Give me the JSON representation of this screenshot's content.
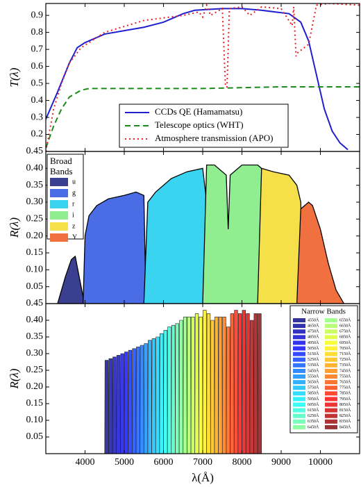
{
  "chart_data": [
    {
      "type": "line",
      "ylabel": "T(λ)",
      "xlim": [
        3000,
        11000
      ],
      "ylim": [
        0.1,
        0.97
      ],
      "yticks": [
        0.2,
        0.3,
        0.4,
        0.5,
        0.6,
        0.7,
        0.8,
        0.9
      ],
      "series": [
        {
          "name": "CCDs QE (Hamamatsu)",
          "color": "#1f1fd0",
          "linestyle": "solid",
          "x": [
            3000,
            3300,
            3600,
            3800,
            4000,
            4500,
            5000,
            5500,
            6000,
            6500,
            6800,
            7500,
            8000,
            8500,
            9200,
            9500,
            9700,
            9900,
            10100,
            10300,
            10500,
            10700
          ],
          "values": [
            0.29,
            0.45,
            0.62,
            0.71,
            0.74,
            0.79,
            0.81,
            0.83,
            0.86,
            0.91,
            0.93,
            0.94,
            0.94,
            0.93,
            0.91,
            0.86,
            0.75,
            0.55,
            0.35,
            0.22,
            0.15,
            0.11
          ]
        },
        {
          "name": "Telescope optics (WHT)",
          "color": "#1a8a1a",
          "linestyle": "dashed",
          "x": [
            3000,
            3200,
            3400,
            3600,
            3900,
            4100,
            5000,
            7000,
            9000,
            11000
          ],
          "values": [
            0.12,
            0.25,
            0.35,
            0.42,
            0.46,
            0.47,
            0.47,
            0.47,
            0.48,
            0.48
          ]
        },
        {
          "name": "Atmosphere transmission (APO)",
          "color": "#e82020",
          "linestyle": "dotted",
          "x": [
            3000,
            3200,
            3400,
            3600,
            3900,
            4500,
            5500,
            6500,
            6900,
            7000,
            7100,
            7200,
            7500,
            7580,
            7620,
            7680,
            8000,
            8200,
            8500,
            9000,
            9280,
            9320,
            9380,
            9420,
            9700,
            9900,
            10200,
            11000
          ],
          "values": [
            0.1,
            0.35,
            0.5,
            0.62,
            0.71,
            0.8,
            0.87,
            0.9,
            0.92,
            0.89,
            0.96,
            0.9,
            0.94,
            0.48,
            0.48,
            0.94,
            0.95,
            0.9,
            0.95,
            0.94,
            0.84,
            0.95,
            0.66,
            0.68,
            0.73,
            0.96,
            0.97,
            0.96
          ]
        }
      ]
    },
    {
      "type": "area",
      "ylabel": "R(λ)",
      "legend_title": "Broad Bands",
      "xlim": [
        3000,
        11000
      ],
      "ylim": [
        0,
        0.45
      ],
      "yticks": [
        0.05,
        {
          "value": 0.1,
          "label": "0.10"
        },
        0.15,
        {
          "value": 0.2,
          "label": "0.20"
        },
        0.25,
        {
          "value": 0.3,
          "label": "0.30"
        },
        0.35,
        {
          "value": 0.4,
          "label": "0.40"
        },
        0.45
      ],
      "series": [
        {
          "name": "u",
          "color": "#3a3f8f",
          "x": [
            3300,
            3500,
            3650,
            3750,
            3850,
            3950,
            4000
          ],
          "values": [
            0,
            0.08,
            0.13,
            0.14,
            0.08,
            0.02,
            0
          ]
        },
        {
          "name": "g",
          "color": "#4a6de5",
          "x": [
            3950,
            4000,
            4100,
            4300,
            4600,
            5000,
            5300,
            5500,
            5550,
            5600
          ],
          "values": [
            0,
            0.2,
            0.26,
            0.29,
            0.31,
            0.32,
            0.33,
            0.32,
            0.02,
            0
          ]
        },
        {
          "name": "r",
          "color": "#3ad4f0",
          "x": [
            5500,
            5600,
            5800,
            6200,
            6600,
            7000,
            7100,
            7150
          ],
          "values": [
            0,
            0.3,
            0.33,
            0.37,
            0.39,
            0.4,
            0.3,
            0
          ]
        },
        {
          "name": "i",
          "color": "#90ee90",
          "x": [
            7000,
            7100,
            7300,
            7600,
            7650,
            7700,
            8000,
            8400,
            8500,
            8550
          ],
          "values": [
            0,
            0.41,
            0.41,
            0.38,
            0.22,
            0.38,
            0.41,
            0.41,
            0.4,
            0
          ]
        },
        {
          "name": "z",
          "color": "#f5e04a",
          "x": [
            8400,
            8500,
            8800,
            9200,
            9400,
            9500,
            9550
          ],
          "values": [
            0,
            0.4,
            0.39,
            0.38,
            0.35,
            0.3,
            0
          ]
        },
        {
          "name": "Y",
          "color": "#f07040",
          "x": [
            9400,
            9500,
            9700,
            9800,
            10000,
            10200,
            10400,
            10600
          ],
          "values": [
            0,
            0.28,
            0.3,
            0.29,
            0.22,
            0.12,
            0.04,
            0
          ]
        }
      ]
    },
    {
      "type": "narrowband",
      "ylabel": "R(λ)",
      "xlabel": "λ(Å)",
      "legend_title": "Narrow Bands",
      "xlim": [
        3000,
        11000
      ],
      "ylim": [
        0,
        0.45
      ],
      "xticks": [
        4000,
        5000,
        6000,
        7000,
        8000,
        9000,
        10000
      ],
      "yticks": [
        0.05,
        {
          "value": 0.1,
          "label": "0.10"
        },
        0.15,
        {
          "value": 0.2,
          "label": "0.20"
        },
        0.25,
        {
          "value": 0.3,
          "label": "0.30"
        },
        0.35,
        {
          "value": 0.4,
          "label": "0.40"
        },
        0.45
      ],
      "x": [
        4550,
        4650,
        4750,
        4850,
        4950,
        5050,
        5150,
        5250,
        5350,
        5450,
        5550,
        5650,
        5750,
        5850,
        5950,
        6050,
        6150,
        6250,
        6350,
        6450,
        6550,
        6650,
        6750,
        6850,
        6950,
        7050,
        7150,
        7250,
        7350,
        7450,
        7550,
        7650,
        7750,
        7850,
        7950,
        8050,
        8150,
        8250,
        8350,
        8450
      ],
      "values": [
        0.28,
        0.285,
        0.29,
        0.295,
        0.3,
        0.305,
        0.31,
        0.315,
        0.32,
        0.325,
        0.33,
        0.34,
        0.345,
        0.35,
        0.36,
        0.37,
        0.38,
        0.385,
        0.39,
        0.4,
        0.41,
        0.41,
        0.41,
        0.42,
        0.41,
        0.43,
        0.42,
        0.4,
        0.41,
        0.41,
        0.41,
        0.38,
        0.42,
        0.43,
        0.42,
        0.43,
        0.42,
        0.4,
        0.42,
        0.42
      ],
      "colors": [
        "#000080",
        "#00009a",
        "#0000b4",
        "#0000ce",
        "#0000e8",
        "#0003ff",
        "#001dff",
        "#0038ff",
        "#0052ff",
        "#006cff",
        "#0086ff",
        "#00a0ff",
        "#00baff",
        "#00d4ff",
        "#00eeff",
        "#0afff5",
        "#24ffdb",
        "#3effc1",
        "#58ffa7",
        "#72ff8c",
        "#8cff72",
        "#a7ff58",
        "#c1ff3e",
        "#dbff24",
        "#f5ff0a",
        "#ffee00",
        "#ffd400",
        "#ffba00",
        "#ffa000",
        "#ff8600",
        "#ff6c00",
        "#ff5200",
        "#ff3800",
        "#ff1d00",
        "#ff0300",
        "#e80000",
        "#ce0000",
        "#b40000",
        "#9a0000",
        "#800000"
      ],
      "labels": [
        "4550Å",
        "4650Å",
        "4750Å",
        "4850Å",
        "4950Å",
        "5050Å",
        "5150Å",
        "5250Å",
        "5350Å",
        "5450Å",
        "5550Å",
        "5650Å",
        "5750Å",
        "5850Å",
        "5950Å",
        "6050Å",
        "6150Å",
        "6250Å",
        "6350Å",
        "6450Å",
        "6550Å",
        "6650Å",
        "6750Å",
        "6850Å",
        "6950Å",
        "7050Å",
        "7150Å",
        "7250Å",
        "7350Å",
        "7450Å",
        "7550Å",
        "7650Å",
        "7750Å",
        "7850Å",
        "7950Å",
        "8050Å",
        "8150Å",
        "8250Å",
        "8350Å",
        "8450Å"
      ]
    }
  ]
}
